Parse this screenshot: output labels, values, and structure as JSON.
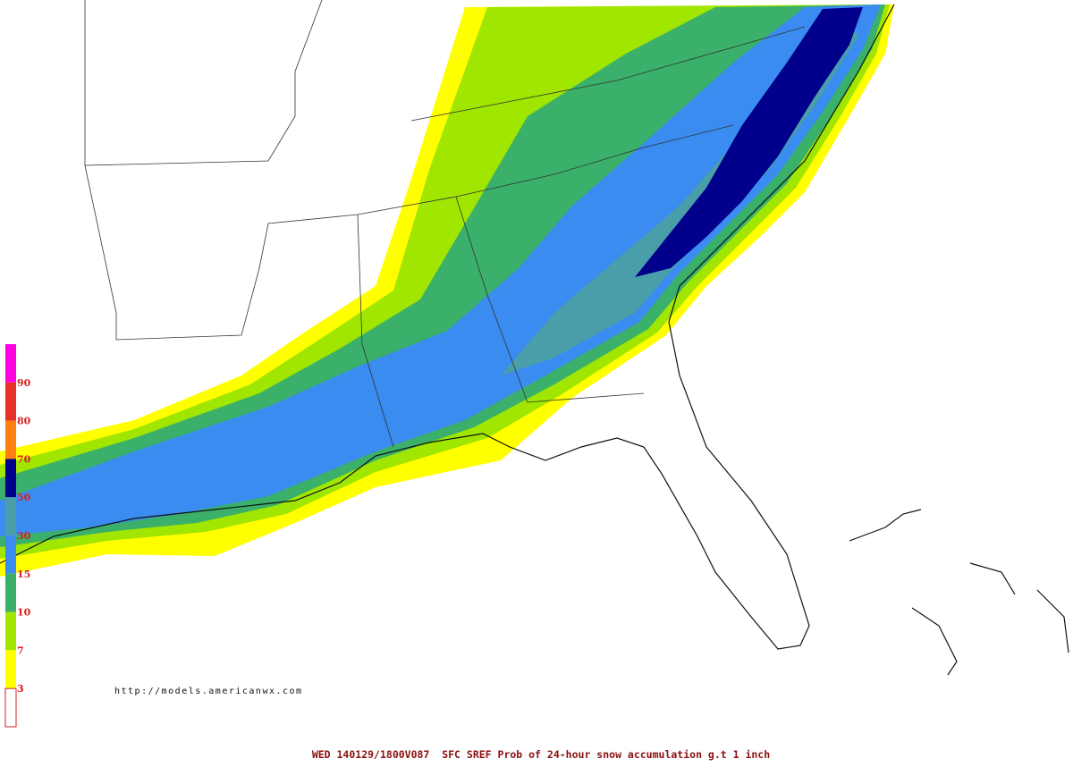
{
  "legend": {
    "labels": [
      "90",
      "80",
      "70",
      "50",
      "30",
      "15",
      "10",
      "7",
      "3"
    ],
    "colors": [
      "#ff00e0",
      "#e83028",
      "#ff7f10",
      "#00008c",
      "#4a9eaa",
      "#3a8cf0",
      "#3ab06a",
      "#a0e600",
      "#ffff00",
      "#ffffff"
    ]
  },
  "source_url": "http://models.americanwx.com",
  "footer": "WED 140129/1800V087  SFC SREF Prob of 24-hour snow accumulation g.t 1 inch"
}
